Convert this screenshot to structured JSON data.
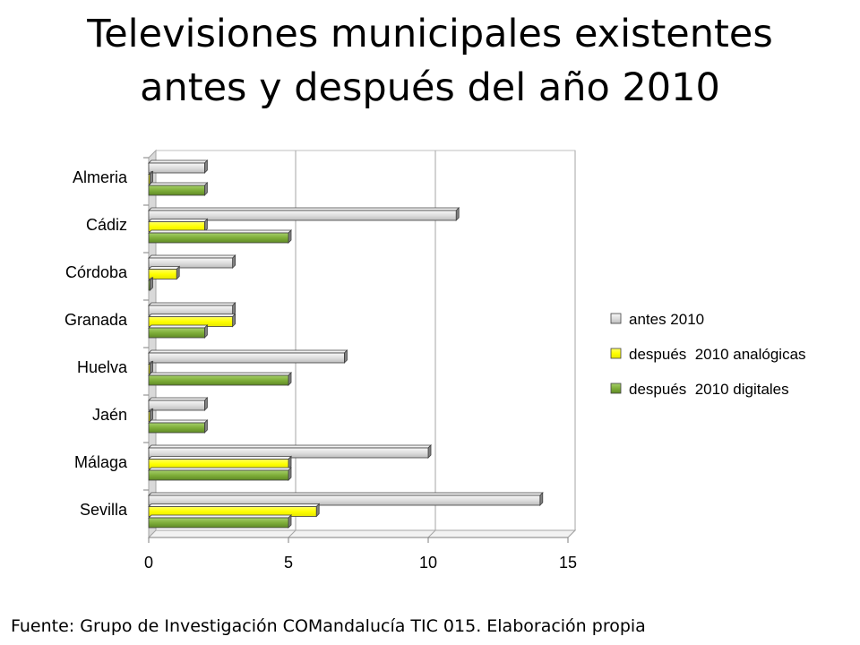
{
  "title_lines": [
    "Televisiones municipales existentes",
    "antes y después del año 2010"
  ],
  "source": "Fuente: Grupo de Investigación COMandalucía TIC 015. Elaboración propia",
  "chart_data": {
    "type": "bar",
    "orientation": "horizontal",
    "style": "3d-clustered",
    "categories": [
      "Almeria",
      "Cádiz",
      "Córdoba",
      "Granada",
      "Huelva",
      "Jaén",
      "Málaga",
      "Sevilla"
    ],
    "series": [
      {
        "name": "antes 2010",
        "color": "#d9d9d9",
        "values": [
          2,
          11,
          3,
          3,
          7,
          2,
          10,
          14
        ]
      },
      {
        "name": "después  2010 analógicas",
        "color": "#ffff00",
        "values": [
          0,
          2,
          1,
          3,
          0,
          0,
          5,
          6
        ]
      },
      {
        "name": "después  2010 digitales",
        "color": "#7fae3a",
        "values": [
          2,
          5,
          0,
          2,
          5,
          2,
          5,
          5
        ]
      }
    ],
    "xlim": [
      0,
      15
    ],
    "xticks": [
      "0",
      "5",
      "10",
      "15"
    ],
    "grid": true,
    "legend_position": "right"
  }
}
